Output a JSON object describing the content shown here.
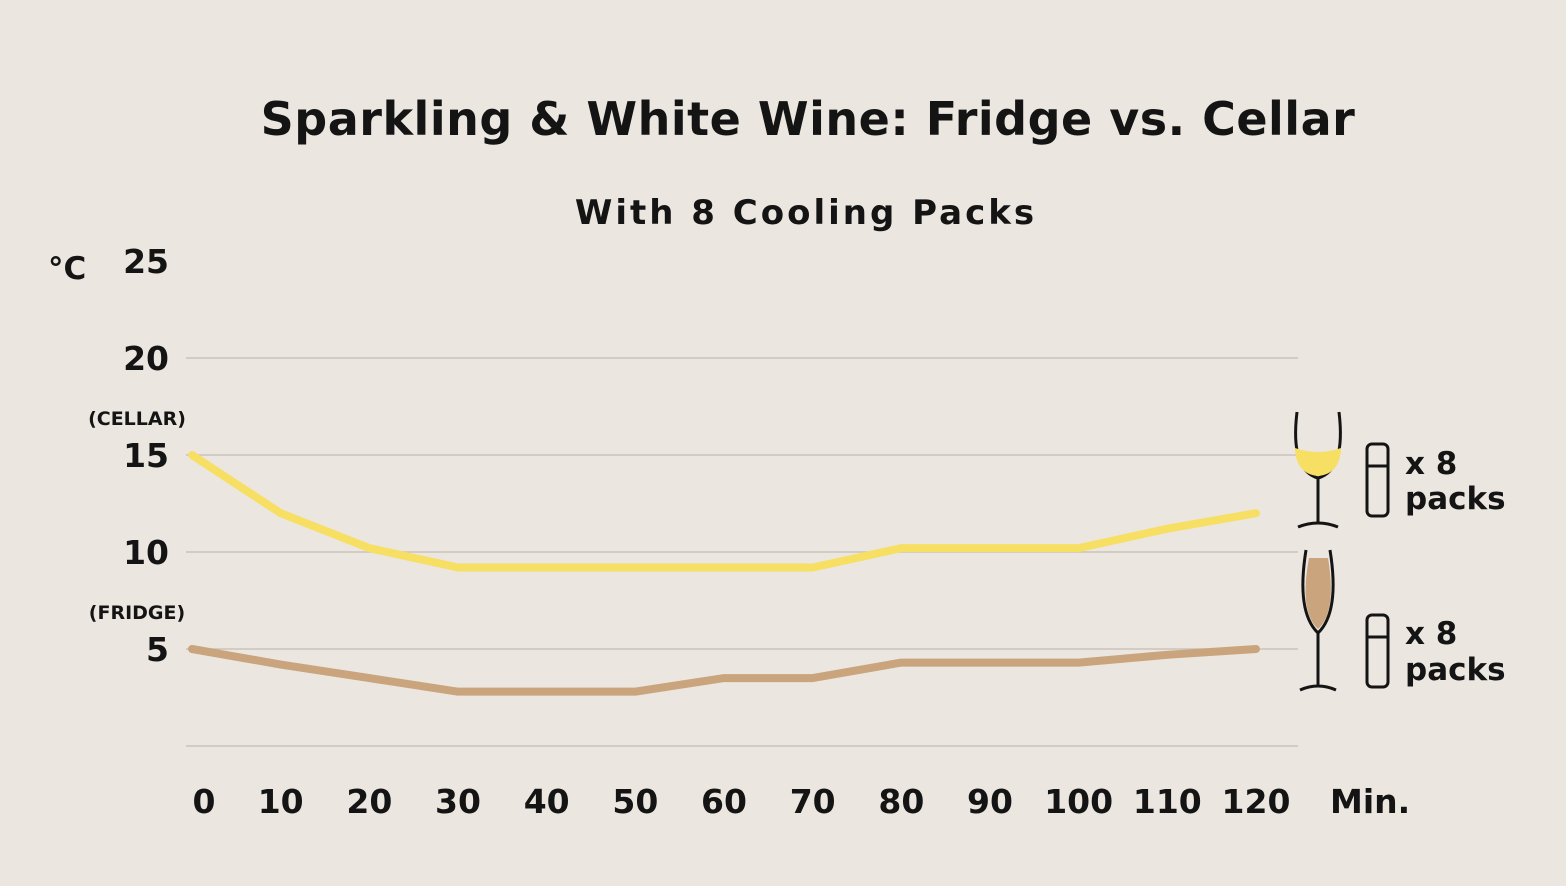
{
  "chart_data": {
    "type": "line",
    "title": "Sparkling & White Wine: Fridge vs. Cellar",
    "subtitle": "With 8 Cooling Packs",
    "ylabel": "°C",
    "xlabel": "Min.",
    "ylim": [
      0,
      25
    ],
    "yticks": [
      "25",
      "20",
      "15",
      "10",
      "5"
    ],
    "ytick_values": [
      25,
      20,
      15,
      10,
      5
    ],
    "ytick_annotations": [
      {
        "label": "(CELLAR)",
        "value": 15
      },
      {
        "label": "(FRIDGE)",
        "value": 5
      }
    ],
    "x": [
      0,
      10,
      20,
      30,
      40,
      50,
      60,
      70,
      80,
      90,
      100,
      110,
      120
    ],
    "xticks": [
      "0",
      "10",
      "20",
      "30",
      "40",
      "50",
      "60",
      "70",
      "80",
      "90",
      "100",
      "110",
      "120"
    ],
    "grid": true,
    "series": [
      {
        "color": "#f7df63",
        "points": [
          [
            0,
            15
          ],
          [
            10,
            12
          ],
          [
            20,
            10.2
          ],
          [
            30,
            9.2
          ],
          [
            40,
            9.2
          ],
          [
            50,
            9.2
          ],
          [
            60,
            9.2
          ],
          [
            70,
            9.2
          ],
          [
            80,
            10.2
          ],
          [
            90,
            10.2
          ],
          [
            100,
            10.2
          ],
          [
            110,
            11.2
          ],
          [
            120,
            12
          ]
        ],
        "glass": "white-wine-glass",
        "packs_label_line1": "x 8",
        "packs_label_line2": "packs"
      },
      {
        "color": "#c9a47c",
        "points": [
          [
            0,
            5
          ],
          [
            10,
            4.2
          ],
          [
            20,
            3.5
          ],
          [
            30,
            2.8
          ],
          [
            40,
            2.8
          ],
          [
            50,
            2.8
          ],
          [
            60,
            3.5
          ],
          [
            70,
            3.5
          ],
          [
            80,
            4.3
          ],
          [
            90,
            4.3
          ],
          [
            100,
            4.3
          ],
          [
            110,
            4.7
          ],
          [
            120,
            5
          ]
        ],
        "glass": "champagne-flute",
        "packs_label_line1": "x 8",
        "packs_label_line2": "packs"
      }
    ]
  }
}
